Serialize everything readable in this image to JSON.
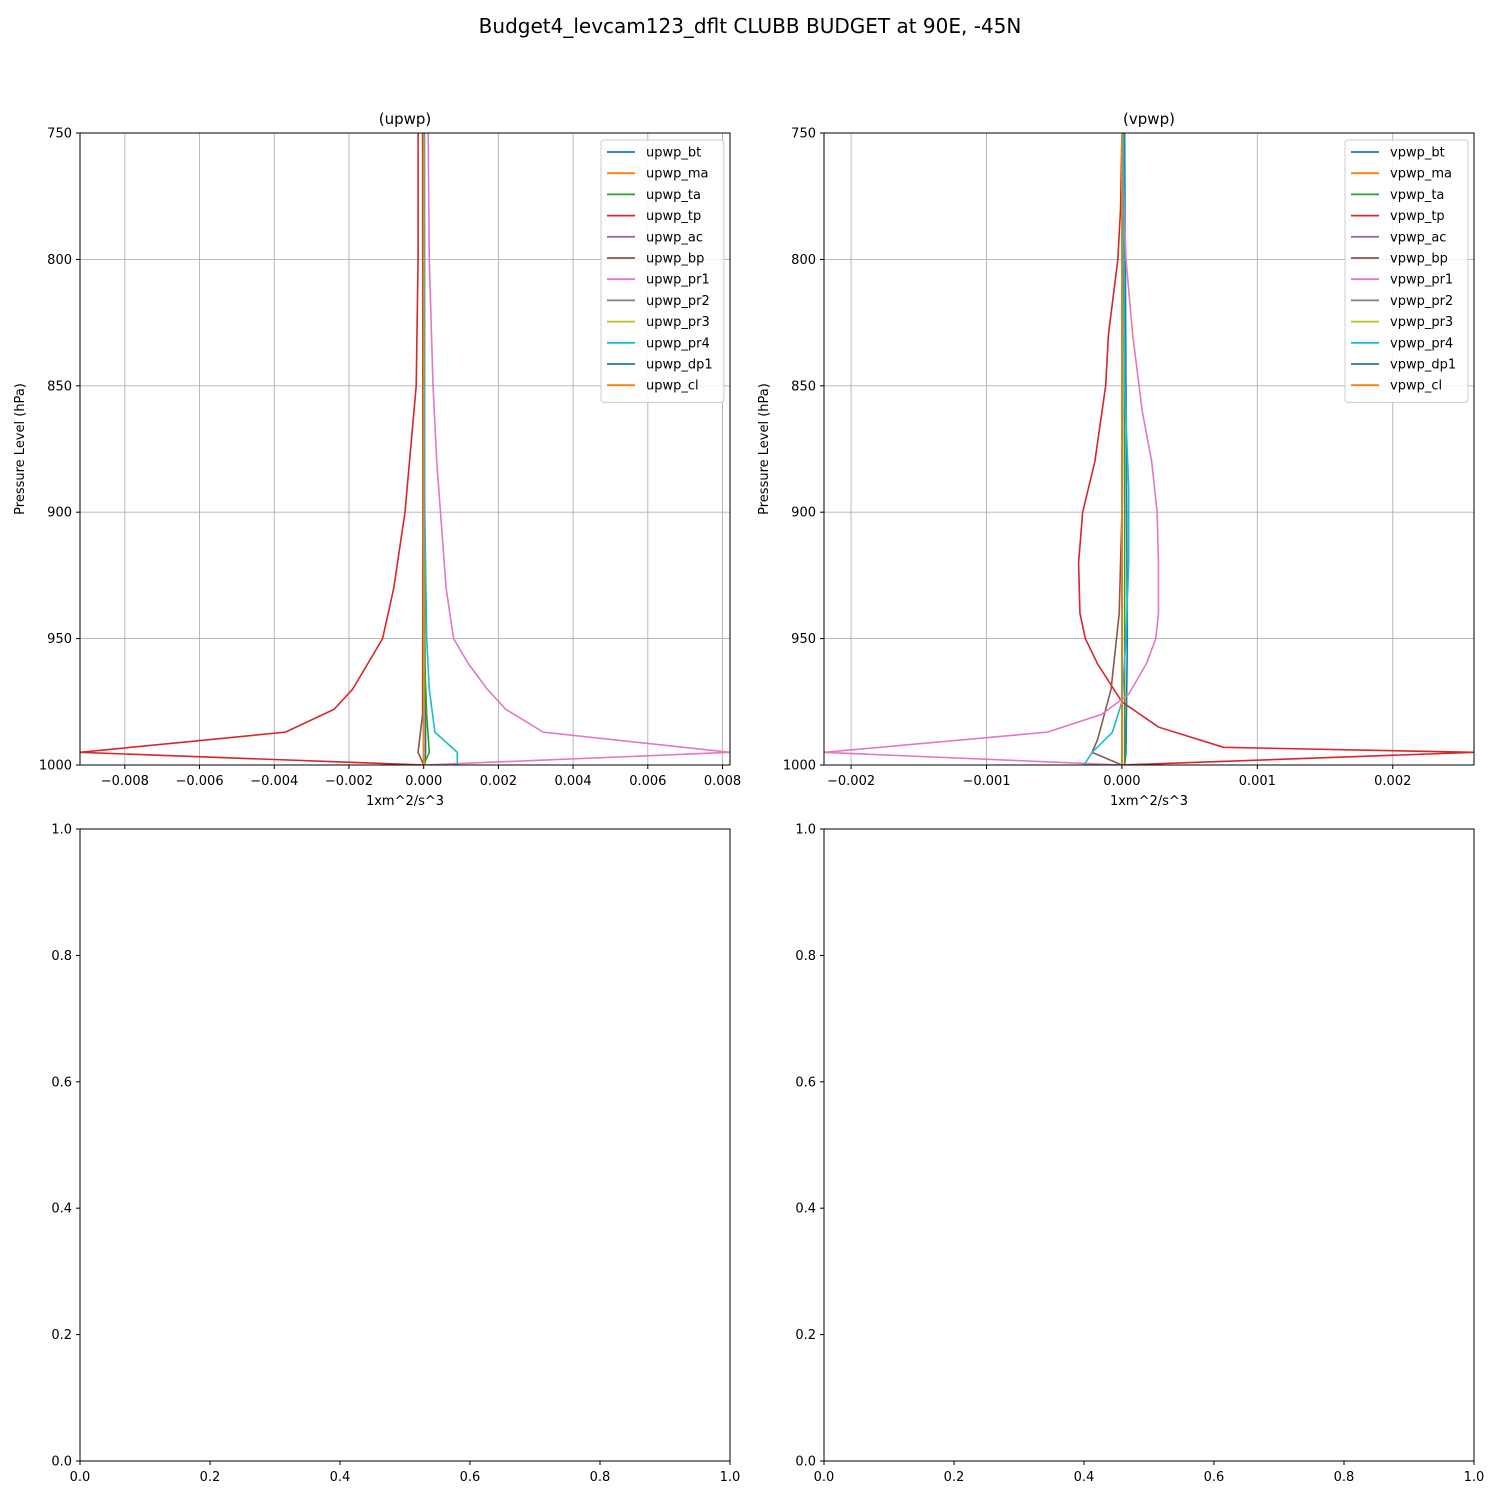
{
  "suptitle": "Budget4_levcam123_dflt CLUBB BUDGET at 90E, -45N",
  "chart_data": [
    {
      "type": "line",
      "title": "(upwp)",
      "xlabel": "1xm^2/s^3",
      "ylabel": "Pressure Level (hPa)",
      "xlim": [
        -0.0092,
        0.0082
      ],
      "ylim": [
        1000,
        750
      ],
      "grid": true,
      "legend_position": "top-right",
      "xticks": [
        -0.008,
        -0.006,
        -0.004,
        -0.002,
        0.0,
        0.002,
        0.004,
        0.006,
        0.008
      ],
      "xtick_labels": [
        "−0.008",
        "−0.006",
        "−0.004",
        "−0.002",
        "0.000",
        "0.002",
        "0.004",
        "0.006",
        "0.008"
      ],
      "yticks": [
        750,
        800,
        850,
        900,
        950,
        1000
      ],
      "ytick_labels": [
        "750",
        "800",
        "850",
        "900",
        "950",
        "1000"
      ],
      "series": [
        {
          "name": "upwp_bt",
          "color": "#1f77b4",
          "points": [
            [
              2e-05,
              750
            ],
            [
              2e-05,
              850
            ],
            [
              3e-05,
              950
            ],
            [
              5e-05,
              985
            ],
            [
              5e-05,
              995
            ],
            [
              3e-05,
              1000
            ]
          ]
        },
        {
          "name": "upwp_ma",
          "color": "#ff7f0e",
          "points": [
            [
              0.0,
              750
            ],
            [
              0.0,
              850
            ],
            [
              0.0,
              950
            ],
            [
              0.0,
              1000
            ]
          ]
        },
        {
          "name": "upwp_ta",
          "color": "#2ca02c",
          "points": [
            [
              1e-05,
              750
            ],
            [
              2e-05,
              900
            ],
            [
              3e-05,
              960
            ],
            [
              8e-05,
              980
            ],
            [
              0.00015,
              995
            ],
            [
              0.0,
              1000
            ]
          ]
        },
        {
          "name": "upwp_tp",
          "color": "#d62728",
          "points": [
            [
              -0.00015,
              750
            ],
            [
              -0.00015,
              800
            ],
            [
              -0.0002,
              850
            ],
            [
              -0.0005,
              900
            ],
            [
              -0.0008,
              930
            ],
            [
              -0.0011,
              950
            ],
            [
              -0.0015,
              960
            ],
            [
              -0.0019,
              970
            ],
            [
              -0.0024,
              978
            ],
            [
              -0.0037,
              987
            ],
            [
              -0.0092,
              995
            ],
            [
              0.0,
              1000
            ]
          ]
        },
        {
          "name": "upwp_ac",
          "color": "#9467bd",
          "points": [
            [
              0.0,
              750
            ],
            [
              0.0,
              900
            ],
            [
              0.0,
              1000
            ]
          ]
        },
        {
          "name": "upwp_bp",
          "color": "#8c564b",
          "points": [
            [
              -3e-05,
              750
            ],
            [
              -2e-05,
              900
            ],
            [
              -3e-05,
              980
            ],
            [
              -0.00015,
              995
            ],
            [
              0.0,
              1000
            ]
          ]
        },
        {
          "name": "upwp_pr1",
          "color": "#e377c2",
          "points": [
            [
              0.00012,
              750
            ],
            [
              0.00015,
              800
            ],
            [
              0.00025,
              850
            ],
            [
              0.00035,
              880
            ],
            [
              0.0005,
              910
            ],
            [
              0.0006,
              930
            ],
            [
              0.0008,
              950
            ],
            [
              0.0012,
              960
            ],
            [
              0.0017,
              970
            ],
            [
              0.0022,
              978
            ],
            [
              0.0032,
              987
            ],
            [
              0.0082,
              995
            ],
            [
              0.0,
              1000
            ]
          ]
        },
        {
          "name": "upwp_pr2",
          "color": "#7f7f7f",
          "points": [
            [
              0.0,
              750
            ],
            [
              0.0,
              1000
            ]
          ]
        },
        {
          "name": "upwp_pr3",
          "color": "#bcbd22",
          "points": [
            [
              1e-05,
              750
            ],
            [
              1e-05,
              1000
            ]
          ]
        },
        {
          "name": "upwp_pr4",
          "color": "#17becf",
          "points": [
            [
              2e-05,
              750
            ],
            [
              3e-05,
              900
            ],
            [
              8e-05,
              950
            ],
            [
              0.00015,
              970
            ],
            [
              0.0003,
              987
            ],
            [
              0.0009,
              995
            ],
            [
              0.0009,
              1000
            ]
          ]
        },
        {
          "name": "upwp_dp1",
          "color": "#1f77b4",
          "points": [
            [
              0.0,
              750
            ],
            [
              0.0,
              1000
            ]
          ]
        },
        {
          "name": "upwp_cl",
          "color": "#ff7f0e",
          "points": [
            [
              0.0,
              750
            ],
            [
              0.0,
              1000
            ]
          ]
        }
      ]
    },
    {
      "type": "line",
      "title": "(vpwp)",
      "xlabel": "1xm^2/s^3",
      "ylabel": "Pressure Level (hPa)",
      "xlim": [
        -0.0022,
        0.0026
      ],
      "ylim": [
        1000,
        750
      ],
      "grid": true,
      "legend_position": "top-right",
      "xticks": [
        -0.002,
        -0.001,
        0.0,
        0.001,
        0.002
      ],
      "xtick_labels": [
        "−0.002",
        "−0.001",
        "0.000",
        "0.001",
        "0.002"
      ],
      "yticks": [
        750,
        800,
        850,
        900,
        950,
        1000
      ],
      "ytick_labels": [
        "750",
        "800",
        "850",
        "900",
        "950",
        "1000"
      ],
      "series": [
        {
          "name": "vpwp_bt",
          "color": "#1f77b4",
          "points": [
            [
              2e-05,
              750
            ],
            [
              3e-05,
              850
            ],
            [
              4e-05,
              950
            ],
            [
              3e-05,
              995
            ],
            [
              2e-05,
              1000
            ]
          ]
        },
        {
          "name": "vpwp_ma",
          "color": "#ff7f0e",
          "points": [
            [
              0.0,
              750
            ],
            [
              0.0,
              1000
            ]
          ]
        },
        {
          "name": "vpwp_ta",
          "color": "#2ca02c",
          "points": [
            [
              1e-05,
              750
            ],
            [
              2e-05,
              900
            ],
            [
              2e-05,
              1000
            ]
          ]
        },
        {
          "name": "vpwp_tp",
          "color": "#d62728",
          "points": [
            [
              0.0,
              750
            ],
            [
              -1e-05,
              780
            ],
            [
              -3e-05,
              800
            ],
            [
              -0.0001,
              830
            ],
            [
              -0.00012,
              850
            ],
            [
              -0.0002,
              880
            ],
            [
              -0.00029,
              900
            ],
            [
              -0.00032,
              920
            ],
            [
              -0.00031,
              940
            ],
            [
              -0.00027,
              950
            ],
            [
              -0.00018,
              960
            ],
            [
              0.0,
              975
            ],
            [
              0.00027,
              985
            ],
            [
              0.00075,
              993
            ],
            [
              0.0026,
              995
            ],
            [
              0.0,
              1000
            ]
          ]
        },
        {
          "name": "vpwp_ac",
          "color": "#9467bd",
          "points": [
            [
              0.0,
              750
            ],
            [
              0.0,
              1000
            ]
          ]
        },
        {
          "name": "vpwp_bp",
          "color": "#8c564b",
          "points": [
            [
              0.0,
              750
            ],
            [
              0.0,
              900
            ],
            [
              -2e-05,
              940
            ],
            [
              -5e-05,
              955
            ],
            [
              -8e-05,
              970
            ],
            [
              -0.00013,
              980
            ],
            [
              -0.00018,
              990
            ],
            [
              -0.00022,
              995
            ],
            [
              0.0,
              1000
            ]
          ]
        },
        {
          "name": "vpwp_pr1",
          "color": "#e377c2",
          "points": [
            [
              0.0,
              750
            ],
            [
              3e-05,
              800
            ],
            [
              8e-05,
              830
            ],
            [
              0.00015,
              860
            ],
            [
              0.00022,
              880
            ],
            [
              0.00026,
              900
            ],
            [
              0.00027,
              920
            ],
            [
              0.00027,
              940
            ],
            [
              0.00025,
              950
            ],
            [
              0.00018,
              960
            ],
            [
              5e-05,
              972
            ],
            [
              -0.00015,
              980
            ],
            [
              -0.00055,
              987
            ],
            [
              -0.0022,
              995
            ],
            [
              0.0,
              1000
            ]
          ]
        },
        {
          "name": "vpwp_pr2",
          "color": "#7f7f7f",
          "points": [
            [
              0.0,
              750
            ],
            [
              0.0,
              1000
            ]
          ]
        },
        {
          "name": "vpwp_pr3",
          "color": "#bcbd22",
          "points": [
            [
              0.0,
              750
            ],
            [
              0.0,
              1000
            ]
          ]
        },
        {
          "name": "vpwp_pr4",
          "color": "#17becf",
          "points": [
            [
              1e-05,
              750
            ],
            [
              2e-05,
              850
            ],
            [
              5e-05,
              890
            ],
            [
              5e-05,
              920
            ],
            [
              3e-05,
              950
            ],
            [
              0.0,
              975
            ],
            [
              -7e-05,
              987
            ],
            [
              -0.00022,
              995
            ],
            [
              -0.00028,
              1000
            ]
          ]
        },
        {
          "name": "vpwp_dp1",
          "color": "#1f77b4",
          "points": [
            [
              0.0,
              750
            ],
            [
              0.0,
              1000
            ]
          ]
        },
        {
          "name": "vpwp_cl",
          "color": "#ff7f0e",
          "points": [
            [
              0.0,
              750
            ],
            [
              0.0,
              1000
            ]
          ]
        }
      ]
    },
    {
      "type": "line",
      "title": "",
      "xlim": [
        0.0,
        1.0
      ],
      "ylim": [
        0.0,
        1.0
      ],
      "grid": false,
      "xticks": [
        0.0,
        0.2,
        0.4,
        0.6,
        0.8,
        1.0
      ],
      "xtick_labels": [
        "0.0",
        "0.2",
        "0.4",
        "0.6",
        "0.8",
        "1.0"
      ],
      "yticks": [
        0.0,
        0.2,
        0.4,
        0.6,
        0.8,
        1.0
      ],
      "ytick_labels": [
        "0.0",
        "0.2",
        "0.4",
        "0.6",
        "0.8",
        "1.0"
      ],
      "series": []
    },
    {
      "type": "line",
      "title": "",
      "xlim": [
        0.0,
        1.0
      ],
      "ylim": [
        0.0,
        1.0
      ],
      "grid": false,
      "xticks": [
        0.0,
        0.2,
        0.4,
        0.6,
        0.8,
        1.0
      ],
      "xtick_labels": [
        "0.0",
        "0.2",
        "0.4",
        "0.6",
        "0.8",
        "1.0"
      ],
      "yticks": [
        0.0,
        0.2,
        0.4,
        0.6,
        0.8,
        1.0
      ],
      "ytick_labels": [
        "0.0",
        "0.2",
        "0.4",
        "0.6",
        "0.8",
        "1.0"
      ],
      "series": []
    }
  ]
}
